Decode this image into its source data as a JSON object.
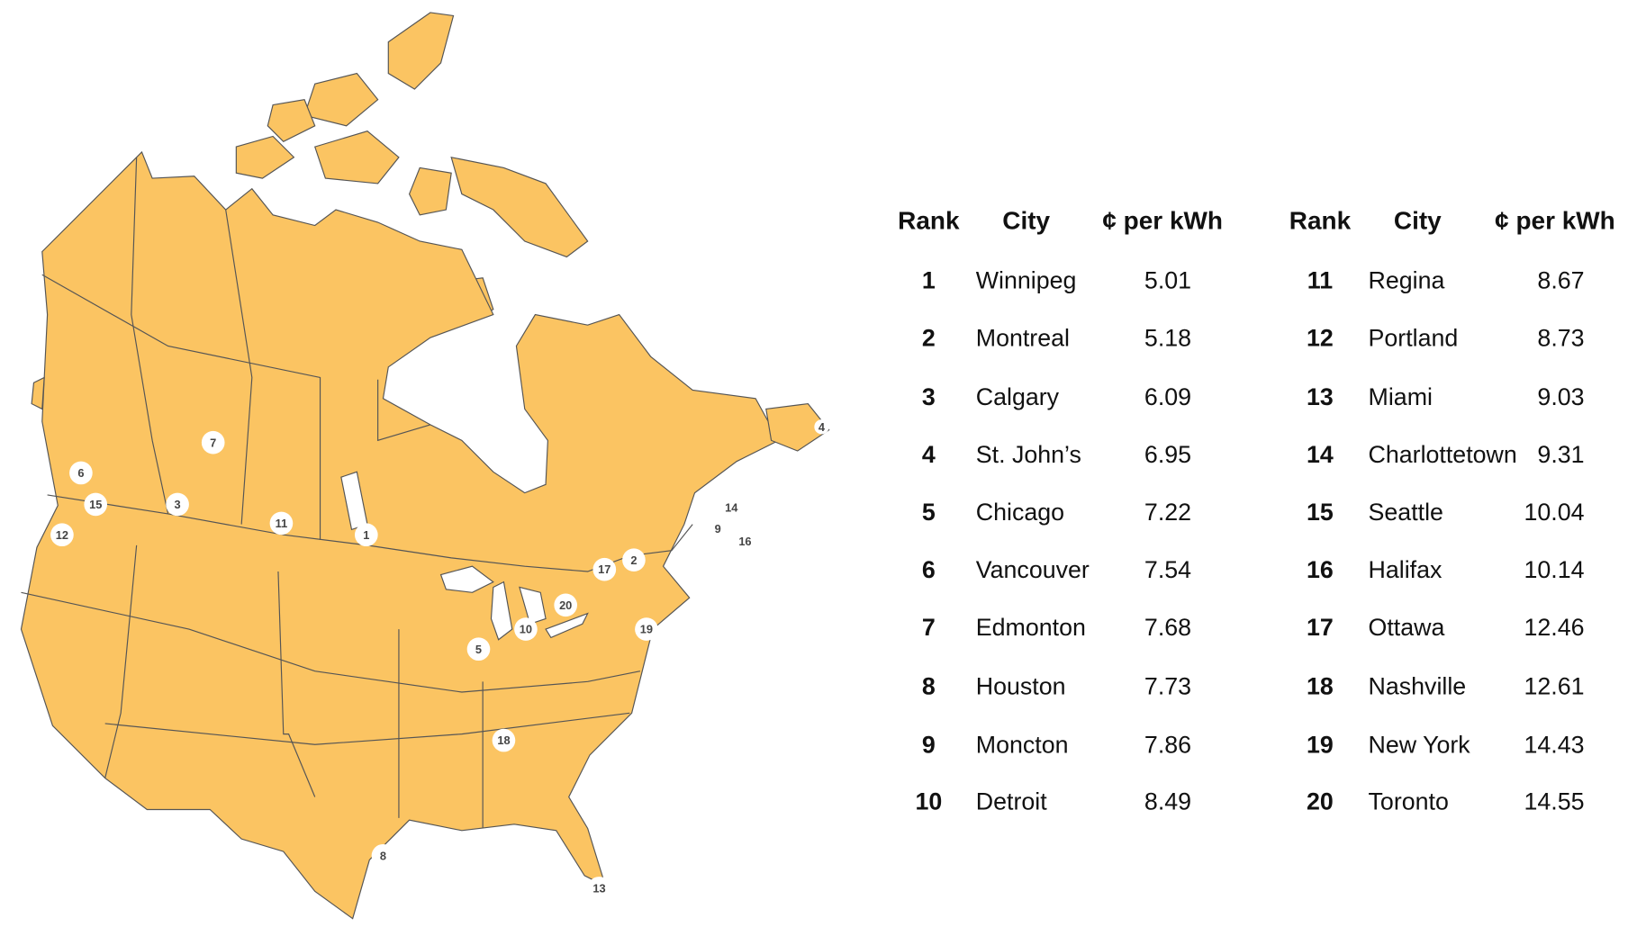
{
  "table": {
    "columns": [
      "Rank",
      "City",
      "¢ per kWh"
    ],
    "rows": [
      {
        "rank": 1,
        "city": "Winnipeg",
        "price": 5.01
      },
      {
        "rank": 2,
        "city": "Montreal",
        "price": 5.18
      },
      {
        "rank": 3,
        "city": "Calgary",
        "price": 6.09
      },
      {
        "rank": 4,
        "city": "St. John’s",
        "price": 6.95
      },
      {
        "rank": 5,
        "city": "Chicago",
        "price": 7.22
      },
      {
        "rank": 6,
        "city": "Vancouver",
        "price": 7.54
      },
      {
        "rank": 7,
        "city": "Edmonton",
        "price": 7.68
      },
      {
        "rank": 8,
        "city": "Houston",
        "price": 7.73
      },
      {
        "rank": 9,
        "city": "Moncton",
        "price": 7.86
      },
      {
        "rank": 10,
        "city": "Detroit",
        "price": 8.49
      },
      {
        "rank": 11,
        "city": "Regina",
        "price": 8.67
      },
      {
        "rank": 12,
        "city": "Portland",
        "price": 8.73
      },
      {
        "rank": 13,
        "city": "Miami",
        "price": 9.03
      },
      {
        "rank": 14,
        "city": "Charlottetown",
        "price": 9.31
      },
      {
        "rank": 15,
        "city": "Seattle",
        "price": 10.04
      },
      {
        "rank": 16,
        "city": "Halifax",
        "price": 10.14
      },
      {
        "rank": 17,
        "city": "Ottawa",
        "price": 12.46
      },
      {
        "rank": 18,
        "city": "Nashville",
        "price": 12.61
      },
      {
        "rank": 19,
        "city": "New York",
        "price": 14.43
      },
      {
        "rank": 20,
        "city": "Toronto",
        "price": 14.55
      }
    ]
  }
}
